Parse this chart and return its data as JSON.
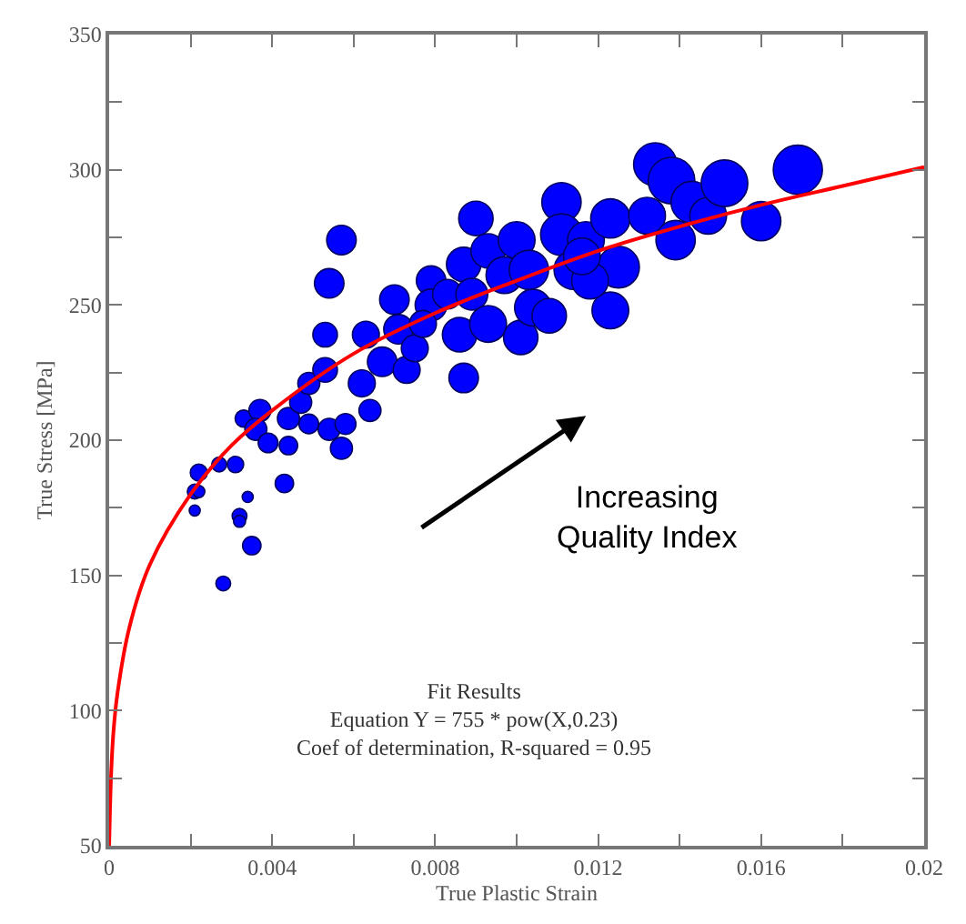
{
  "chart_data": {
    "type": "bubble",
    "xlabel": "True Plastic Strain",
    "ylabel": "True Stress [MPa]",
    "xlim": [
      0,
      0.02
    ],
    "ylim": [
      50,
      350
    ],
    "xticks": [
      0,
      {
        "value": 0.002,
        "label": null
      },
      0.004,
      {
        "value": 0.006,
        "label": null
      },
      0.008,
      {
        "value": 0.01,
        "label": null
      },
      0.012,
      {
        "value": 0.014,
        "label": null
      },
      0.016,
      {
        "value": 0.018,
        "label": null
      },
      0.02
    ],
    "yticks": [
      50,
      {
        "value": 75,
        "label": null
      },
      100,
      {
        "value": 125,
        "label": null
      },
      150,
      {
        "value": 175,
        "label": null
      },
      200,
      {
        "value": 225,
        "label": null
      },
      250,
      {
        "value": 275,
        "label": null
      },
      300,
      {
        "value": 325,
        "label": null
      },
      350
    ],
    "marker": "circle",
    "annotations": [
      "Increasing\nQuality Index",
      "Fit Results\nEquation Y = 755 * pow(X,0.23)\nCoef of determination, R-squared = 0.95"
    ],
    "series": [
      {
        "color": "#0000ff",
        "x": [
          0.0022,
          0.0021,
          0.0022,
          0.0021,
          0.0027,
          0.0031,
          0.0034,
          0.0032,
          0.0032,
          0.0035,
          0.0028,
          0.0043,
          0.0033,
          0.0037,
          0.0036,
          0.0039,
          0.0044,
          0.0044,
          0.0049,
          0.0047,
          0.0049,
          0.0053,
          0.0054,
          0.0058,
          0.0057,
          0.0064,
          0.0053,
          0.0054,
          0.0057,
          0.0062,
          0.0063,
          0.0067,
          0.007,
          0.0071,
          0.0073,
          0.0075,
          0.0079,
          0.0079,
          0.0083,
          0.0087,
          0.0087,
          0.0086,
          0.0089,
          0.009,
          0.0093,
          0.0093,
          0.0097,
          0.01,
          0.0101,
          0.0103,
          0.0104,
          0.0108,
          0.0111,
          0.0111,
          0.0114,
          0.0117,
          0.0123,
          0.0123,
          0.0125,
          0.0132,
          0.0134,
          0.0138,
          0.0139,
          0.0143,
          0.0147,
          0.0151,
          0.016,
          0.0169,
          0.0118,
          0.0077,
          0.0116
        ],
        "values": [
          188,
          181,
          181,
          174,
          191,
          191,
          179,
          172,
          170,
          161,
          147,
          184,
          208,
          211,
          204,
          199,
          198,
          208,
          206,
          214,
          221,
          226,
          204,
          206,
          197,
          211,
          239,
          258,
          274,
          221,
          239,
          229,
          252,
          241,
          226,
          234,
          259,
          250,
          254,
          223,
          265,
          239,
          254,
          282,
          243,
          270,
          261,
          274,
          238,
          263,
          249,
          246,
          288,
          276,
          263,
          274,
          282,
          248,
          264,
          283,
          302,
          296,
          274,
          288,
          283,
          295,
          281,
          300,
          259,
          243,
          268
        ],
        "sizes": [
          0.12,
          0.09,
          0.06,
          0.05,
          0.09,
          0.11,
          0.05,
          0.09,
          0.06,
          0.14,
          0.09,
          0.14,
          0.12,
          0.2,
          0.2,
          0.16,
          0.14,
          0.2,
          0.16,
          0.2,
          0.2,
          0.25,
          0.2,
          0.18,
          0.2,
          0.2,
          0.25,
          0.36,
          0.36,
          0.3,
          0.3,
          0.36,
          0.36,
          0.36,
          0.3,
          0.3,
          0.36,
          0.42,
          0.36,
          0.36,
          0.49,
          0.49,
          0.42,
          0.49,
          0.56,
          0.49,
          0.56,
          0.56,
          0.49,
          0.64,
          0.56,
          0.49,
          0.64,
          0.72,
          0.64,
          0.56,
          0.64,
          0.56,
          0.72,
          0.56,
          0.77,
          0.9,
          0.64,
          0.72,
          0.56,
          0.9,
          0.64,
          1,
          0.56,
          0.3,
          0.56
        ]
      },
      {
        "type": "line",
        "color": "#ff0000",
        "marker": "none",
        "line_style": "solid",
        "x": [
          0,
          2e-05,
          5e-05,
          0.0001,
          0.0002,
          0.0005,
          0.001,
          0.002,
          0.003,
          0.004,
          0.006,
          0.008,
          0.01,
          0.012,
          0.014,
          0.016,
          0.018,
          0.02
        ],
        "values": [
          50,
          63,
          77,
          91,
          106,
          131,
          154,
          180,
          198,
          211,
          232,
          247,
          259,
          270,
          279,
          287,
          294,
          301
        ]
      }
    ]
  }
}
